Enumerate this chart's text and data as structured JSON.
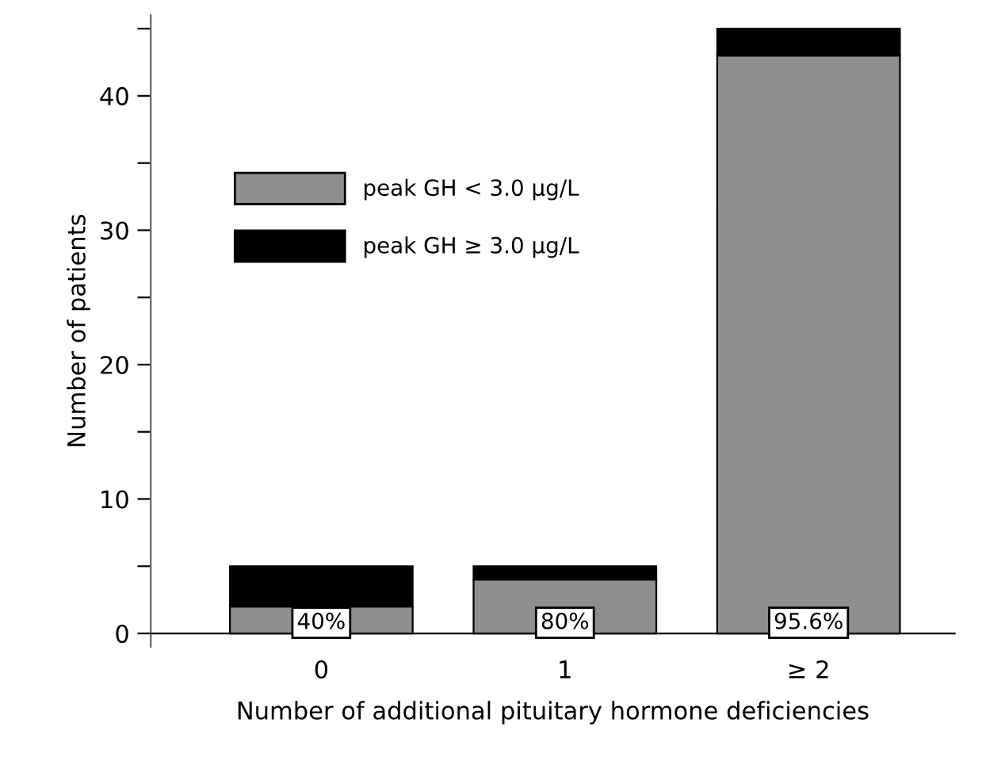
{
  "chart_data": {
    "type": "bar",
    "stacked": true,
    "xlabel": "Number of additional pituitary hormone deficiencies",
    "ylabel": "Number of patients",
    "categories": [
      "0",
      "1",
      "≥ 2"
    ],
    "series": [
      {
        "name": "peak GH < 3.0 μg/L",
        "color": "#8f8f8f",
        "values": [
          2,
          4,
          43
        ]
      },
      {
        "name": "peak GH ≥ 3.0 μg/L",
        "color": "#000000",
        "values": [
          3,
          1,
          2
        ]
      }
    ],
    "ylim": [
      -1,
      46
    ],
    "yticks": [
      0,
      {
        "value": 5,
        "label": null
      },
      10,
      {
        "value": 15,
        "label": null
      },
      20,
      {
        "value": 25,
        "label": null
      },
      30,
      {
        "value": 35,
        "label": null
      },
      40,
      {
        "value": 45,
        "label": null
      }
    ],
    "annotations": [
      "40%",
      "80%",
      "95.6%"
    ],
    "legend": "left",
    "grid": false
  }
}
